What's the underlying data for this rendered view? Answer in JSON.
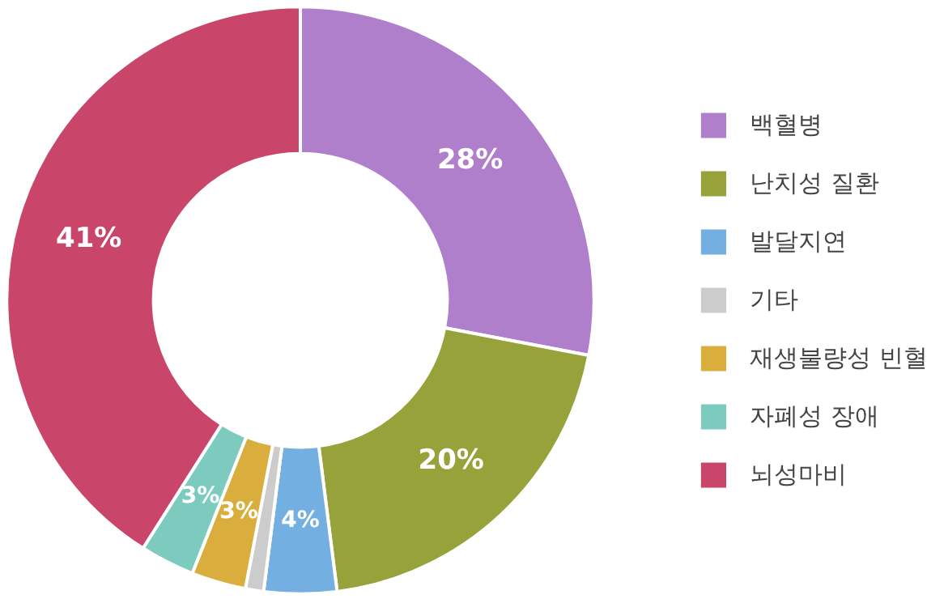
{
  "chart_data": {
    "type": "donut",
    "categories": [
      "백혈병",
      "난치성 질환",
      "발달지연",
      "기타",
      "재생불량성 빈혈",
      "자폐성 장애",
      "뇌성마비"
    ],
    "values": [
      28,
      20,
      4,
      1,
      3,
      3,
      41
    ],
    "value_labels": [
      "28%",
      "20%",
      "4%",
      null,
      "3%",
      "3%",
      "41%"
    ],
    "colors": [
      "#b07fcc",
      "#97a23a",
      "#73afe0",
      "#cccccc",
      "#d9ae3c",
      "#7dcbbf",
      "#c9456a"
    ],
    "legend": "right"
  }
}
